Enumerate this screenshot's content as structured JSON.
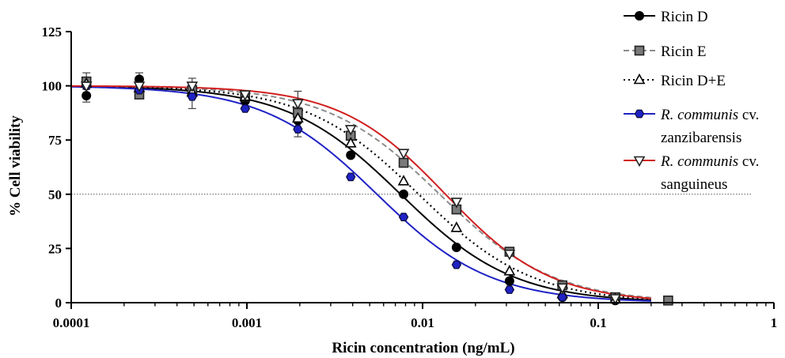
{
  "chart_data": {
    "type": "scatter",
    "title": "",
    "xlabel": "Ricin concentration (ng/mL)",
    "ylabel": "% Cell viability",
    "x_scale": "log",
    "xlim": [
      0.0001,
      1
    ],
    "ylim": [
      0,
      125
    ],
    "x_ticks": [
      "0.0001",
      "0.001",
      "0.01",
      "0.1",
      "1"
    ],
    "y_ticks": [
      "0",
      "25",
      "50",
      "75",
      "100",
      "125"
    ],
    "x_tick_values": [
      0.0001,
      0.001,
      0.01,
      0.1,
      1
    ],
    "y_tick_values": [
      0,
      25,
      50,
      75,
      100,
      125
    ],
    "reference_line_y": 50,
    "legend_position": "top-right",
    "legend": [
      {
        "key": "ricin_d",
        "lines": [
          [
            "",
            "Ricin D"
          ]
        ]
      },
      {
        "key": "ricin_e",
        "lines": [
          [
            "",
            "Ricin E"
          ]
        ]
      },
      {
        "key": "ricin_de",
        "lines": [
          [
            "",
            "Ricin D+E"
          ]
        ]
      },
      {
        "key": "zanzibarensis",
        "lines": [
          [
            "R. communis",
            " cv."
          ],
          [
            "",
            "zanzibarensis"
          ]
        ]
      },
      {
        "key": "sanguineus",
        "lines": [
          [
            "R. communis",
            " cv."
          ],
          [
            "",
            "sanguineus"
          ]
        ]
      }
    ],
    "series": [
      {
        "key": "ricin_d",
        "color": "#000000",
        "marker": "circle",
        "line_style": "solid",
        "ic50": 0.0075,
        "hill": 1.35,
        "x": [
          0.000122,
          0.000244,
          0.000488,
          0.000977,
          0.00195,
          0.0039,
          0.0078,
          0.0156,
          0.03125,
          0.0625,
          0.125
        ],
        "y": [
          95.5,
          103,
          98,
          93,
          84,
          68,
          50,
          25.5,
          10,
          2.5,
          1
        ]
      },
      {
        "key": "ricin_e",
        "color": "#808080",
        "marker": "square",
        "line_style": "dashed",
        "ic50": 0.0125,
        "hill": 1.35,
        "x": [
          0.000122,
          0.000244,
          0.000488,
          0.000977,
          0.00195,
          0.0039,
          0.0078,
          0.0156,
          0.03125,
          0.0625,
          0.125,
          0.25
        ],
        "y": [
          102,
          96,
          98,
          95,
          87.5,
          77,
          64.5,
          43,
          23.5,
          8,
          2.5,
          1
        ]
      },
      {
        "key": "ricin_de",
        "color": "#000000",
        "marker": "triangle",
        "line_style": "dotted",
        "ic50": 0.0095,
        "hill": 1.35,
        "x": [
          0.000122,
          0.000244,
          0.000488,
          0.000977,
          0.00195,
          0.0039,
          0.0078,
          0.0156,
          0.03125,
          0.0625,
          0.125
        ],
        "y": [
          101,
          99,
          97,
          95,
          85,
          73.5,
          56,
          34.5,
          14.5,
          4,
          1.5
        ]
      },
      {
        "key": "zanzibarensis",
        "color": "#1f22c4",
        "marker": "hexagon",
        "line_style": "solid",
        "ic50": 0.0055,
        "hill": 1.35,
        "x": [
          0.000122,
          0.000244,
          0.000488,
          0.000977,
          0.00195,
          0.0039,
          0.0078,
          0.0156,
          0.03125,
          0.0625
        ],
        "y": [
          100,
          98,
          95,
          89.5,
          80,
          58,
          39.5,
          17.5,
          6,
          2.5
        ]
      },
      {
        "key": "sanguineus",
        "color": "#d11f1f",
        "marker": "down-triangle",
        "line_style": "solid",
        "ic50": 0.0135,
        "hill": 1.45,
        "x": [
          0.000122,
          0.000244,
          0.000488,
          0.000977,
          0.00195,
          0.0039,
          0.0078,
          0.0156,
          0.03125,
          0.0625,
          0.125
        ],
        "y": [
          100,
          100,
          100,
          96,
          92,
          80,
          69,
          46.5,
          22.5,
          7,
          2
        ]
      }
    ],
    "error_bars": [
      {
        "series": "ricin_d",
        "x": 0.000122,
        "y_low": 92.5,
        "y_high": 98.5
      },
      {
        "series": "ricin_e",
        "x": 0.000122,
        "y_low": 98.5,
        "y_high": 106
      },
      {
        "series": "ricin_d",
        "x": 0.000244,
        "y_low": 100,
        "y_high": 106
      },
      {
        "series": "zanzibarensis",
        "x": 0.000488,
        "y_low": 89.5,
        "y_high": 100
      },
      {
        "series": "ricin_e",
        "x": 0.000488,
        "y_low": 97,
        "y_high": 103.5
      },
      {
        "series": "zanzibarensis",
        "x": 0.00195,
        "y_low": 76.5,
        "y_high": 83.5
      },
      {
        "series": "sanguineus",
        "x": 0.00195,
        "y_low": 90,
        "y_high": 97.5
      }
    ]
  }
}
